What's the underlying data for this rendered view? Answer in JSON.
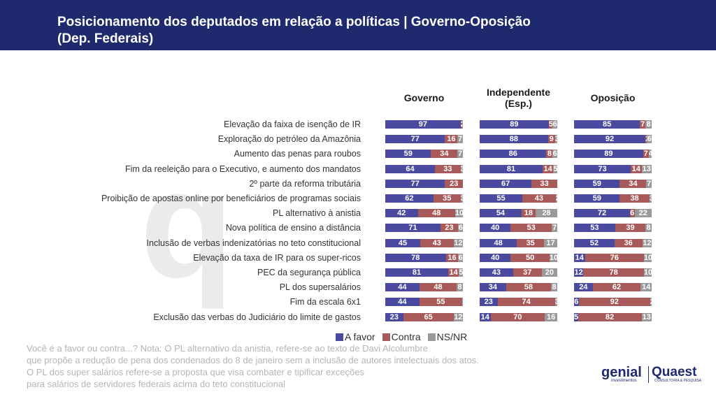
{
  "title_line1": "Posicionamento dos deputados em relação a políticas | Governo-Oposição",
  "title_line2": "(Dep. Federais)",
  "colors": {
    "a_favor": "#4a4aa0",
    "contra": "#a85a5a",
    "ns_nr": "#9a9a9a",
    "header": "#1f2a6e"
  },
  "chart_data": {
    "type": "bar",
    "stacked": true,
    "orientation": "horizontal",
    "groups": [
      "Governo",
      "Independente (Esp.)",
      "Oposição"
    ],
    "group_title_lines": [
      [
        "Governo"
      ],
      [
        "Independente",
        "(Esp.)"
      ],
      [
        "Oposição"
      ]
    ],
    "series_names": [
      "A favor",
      "Contra",
      "NS/NR"
    ],
    "categories": [
      "Elevação da faixa de isenção de IR",
      "Exploração do petróleo da Amazônia",
      "Aumento das penas para roubos",
      "Fim da reeleição para o Executivo, e aumento dos mandatos",
      "2º parte da reforma tributária",
      "Proibição de apostas online por beneficiários de programas sociais",
      "PL alternativo à anistia",
      "Nova política de ensino a distância",
      "Inclusão de verbas indenizatórias no teto constitucional",
      "Elevação da taxa de IR para os super-ricos",
      "PEC da segurança pública",
      "PL dos supersalários",
      "Fim da escala 6x1",
      "Exclusão das verbas do Judiciário do limite de gastos"
    ],
    "values": [
      [
        [
          97,
          2,
          1
        ],
        [
          89,
          5,
          6
        ],
        [
          85,
          7,
          8
        ]
      ],
      [
        [
          77,
          16,
          7
        ],
        [
          88,
          9,
          3
        ],
        [
          92,
          2,
          6
        ]
      ],
      [
        [
          59,
          34,
          7
        ],
        [
          86,
          8,
          6
        ],
        [
          89,
          7,
          4
        ]
      ],
      [
        [
          64,
          33,
          3
        ],
        [
          81,
          14,
          5
        ],
        [
          73,
          14,
          13
        ]
      ],
      [
        [
          77,
          23,
          0
        ],
        [
          67,
          33,
          0
        ],
        [
          59,
          34,
          7
        ]
      ],
      [
        [
          62,
          35,
          3
        ],
        [
          55,
          43,
          2
        ],
        [
          59,
          38,
          3
        ]
      ],
      [
        [
          42,
          48,
          10
        ],
        [
          54,
          18,
          28
        ],
        [
          72,
          6,
          22
        ]
      ],
      [
        [
          71,
          23,
          6
        ],
        [
          40,
          53,
          7
        ],
        [
          53,
          39,
          8
        ]
      ],
      [
        [
          45,
          43,
          12
        ],
        [
          48,
          35,
          17
        ],
        [
          52,
          36,
          12
        ]
      ],
      [
        [
          78,
          16,
          6
        ],
        [
          40,
          50,
          10
        ],
        [
          14,
          76,
          10
        ]
      ],
      [
        [
          81,
          14,
          5
        ],
        [
          43,
          37,
          20
        ],
        [
          12,
          78,
          10
        ]
      ],
      [
        [
          44,
          48,
          8
        ],
        [
          34,
          58,
          8
        ],
        [
          24,
          62,
          14
        ]
      ],
      [
        [
          44,
          55,
          1
        ],
        [
          23,
          74,
          3
        ],
        [
          6,
          92,
          2
        ]
      ],
      [
        [
          23,
          65,
          12
        ],
        [
          14,
          70,
          16
        ],
        [
          5,
          82,
          13
        ]
      ]
    ],
    "xlim": [
      0,
      100
    ]
  },
  "footnote": [
    "Você é a favor ou contra...? Nota: O PL alternativo da anistia, refere-se ao texto de Davi Alcolumbre",
    "que propõe a redução de pena dos condenados do 8 de janeiro sem a inclusão de autores intelectuais dos atos.",
    "O PL dos super salários refere-se a proposta que visa combater e tipificar exceções",
    "para salários de servidores federais acima do teto constitucional"
  ],
  "logos": {
    "genial": "genial",
    "genial_sub": "investimentos",
    "quaest": "Quaest",
    "quaest_sub": "CONSULTORIA & PESQUISA"
  }
}
